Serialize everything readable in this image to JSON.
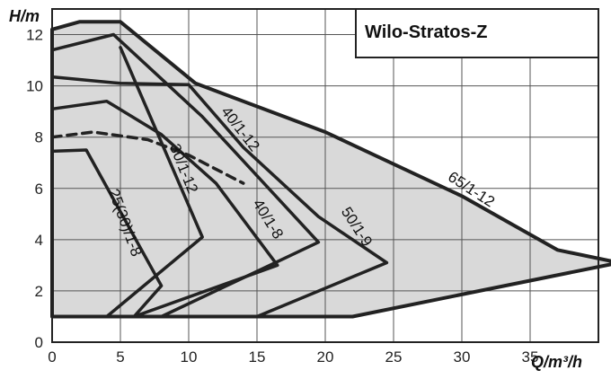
{
  "chart_data": {
    "type": "line",
    "title": "Wilo-Stratos-Z",
    "xlabel": "Q/m³/h",
    "ylabel": "H/m",
    "xlim": [
      0,
      40
    ],
    "ylim": [
      0,
      13
    ],
    "x_ticks": [
      "0",
      "5",
      "10",
      "15",
      "20",
      "25",
      "30",
      "35"
    ],
    "y_ticks": [
      "0",
      "2",
      "4",
      "6",
      "8",
      "10",
      "12"
    ],
    "grid": true,
    "colors": {
      "fill": "#d9d9d9",
      "line": "#222222",
      "grid": "#555555"
    },
    "series": [
      {
        "name": "65/1-12",
        "style": "solid",
        "points": [
          [
            0,
            12.2
          ],
          [
            2,
            12.5
          ],
          [
            5,
            12.5
          ],
          [
            10.5,
            10.1
          ],
          [
            20,
            8.2
          ],
          [
            30,
            5.7
          ],
          [
            37,
            3.6
          ],
          [
            41.5,
            3.1
          ],
          [
            35,
            2.4
          ],
          [
            22,
            1.0
          ],
          [
            0,
            1.0
          ]
        ]
      },
      {
        "name": "50/1-9",
        "style": "solid",
        "points": [
          [
            0,
            10.35
          ],
          [
            5,
            10.1
          ],
          [
            10,
            10.05
          ],
          [
            14,
            7.6
          ],
          [
            19.5,
            4.9
          ],
          [
            24.5,
            3.1
          ],
          [
            15,
            1.0
          ]
        ]
      },
      {
        "name": "40/1-12",
        "style": "solid",
        "points": [
          [
            0,
            11.4
          ],
          [
            4.5,
            12.0
          ],
          [
            11,
            8.8
          ],
          [
            19.5,
            3.9
          ],
          [
            8,
            1.0
          ]
        ]
      },
      {
        "name": "40/1-8",
        "style": "solid",
        "points": [
          [
            0,
            9.1
          ],
          [
            4,
            9.4
          ],
          [
            8,
            8.1
          ],
          [
            12,
            6.2
          ],
          [
            16.5,
            3.0
          ],
          [
            6,
            1.0
          ]
        ]
      },
      {
        "name": "30/1-12",
        "style": "solid",
        "points": [
          [
            5,
            11.5
          ],
          [
            11,
            4.1
          ],
          [
            4,
            1.0
          ]
        ]
      },
      {
        "name": "25(30)/1-8",
        "style": "solid",
        "points": [
          [
            0,
            7.45
          ],
          [
            2.5,
            7.5
          ],
          [
            8,
            2.2
          ],
          [
            6,
            1.0
          ]
        ]
      },
      {
        "name": "",
        "style": "dashed",
        "points": [
          [
            0,
            8.0
          ],
          [
            3,
            8.2
          ],
          [
            7,
            7.9
          ],
          [
            10,
            7.3
          ],
          [
            14,
            6.2
          ]
        ]
      }
    ],
    "annotations": [
      {
        "text": "65/1-12",
        "x": 30.5,
        "y": 5.8,
        "rotate": 33
      },
      {
        "text": "50/1-9",
        "x": 22,
        "y": 4.4,
        "rotate": 57
      },
      {
        "text": "40/1-12",
        "x": 13.5,
        "y": 8.2,
        "rotate": 52
      },
      {
        "text": "40/1-8",
        "x": 15.5,
        "y": 4.7,
        "rotate": 58
      },
      {
        "text": "30/1-12",
        "x": 9.3,
        "y": 6.7,
        "rotate": 68
      },
      {
        "text": "25(30)/1-8",
        "x": 5.0,
        "y": 4.6,
        "rotate": 70
      }
    ]
  }
}
